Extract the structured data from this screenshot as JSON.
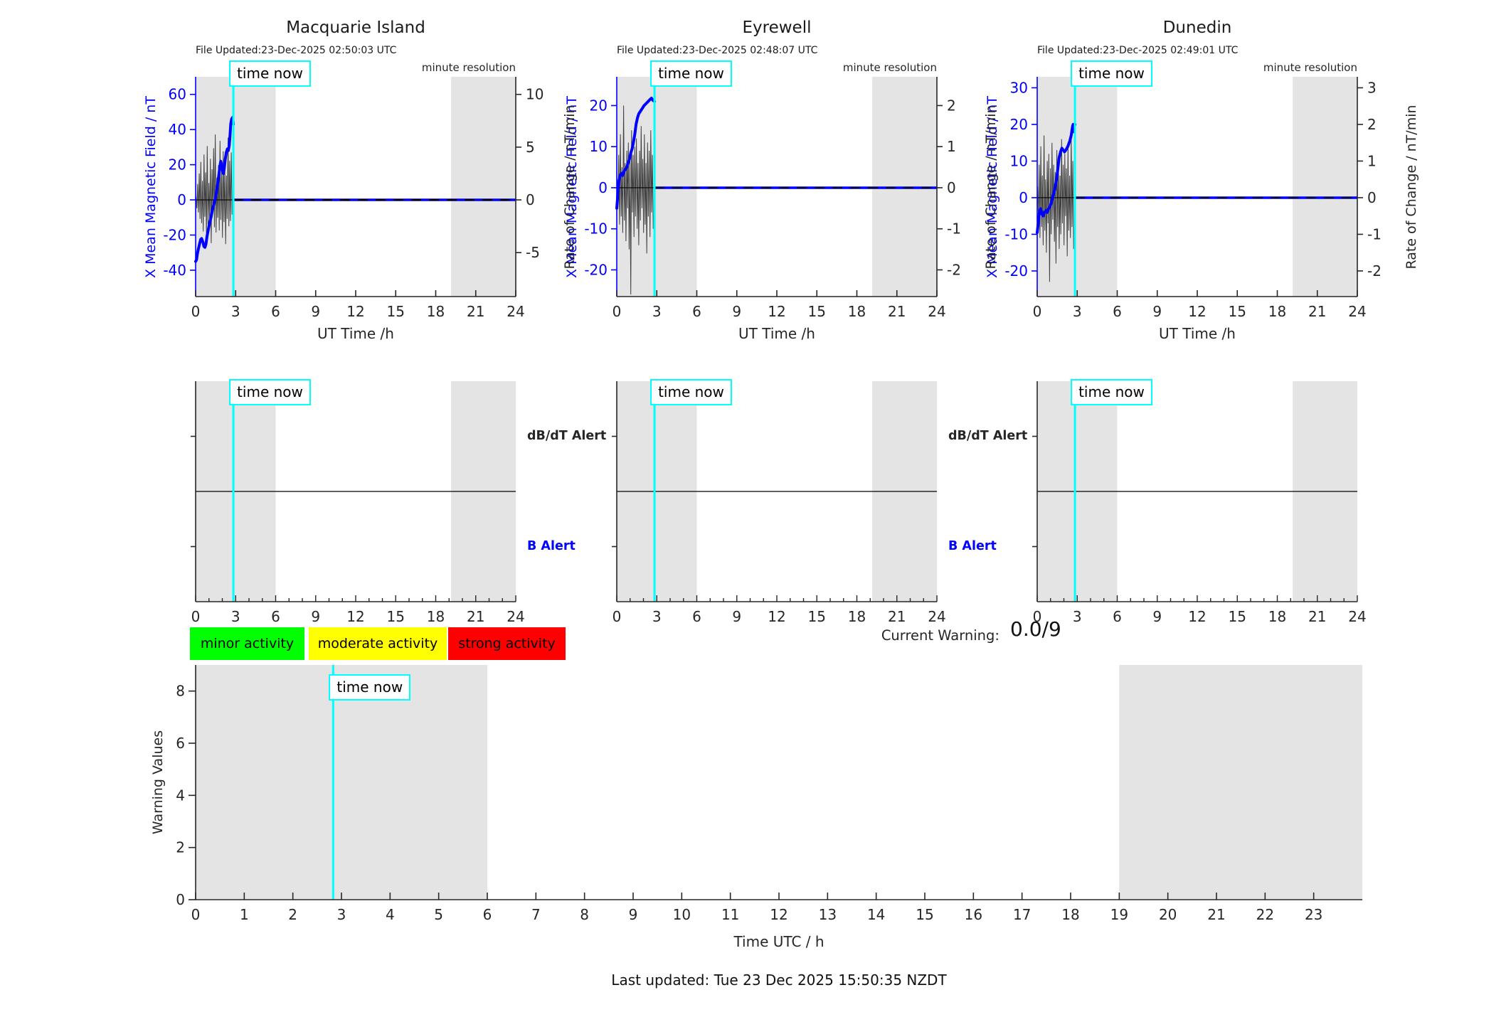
{
  "colors": {
    "accent_blue": "#0000ff",
    "cyan": "#00ffff",
    "band_gray": "#e4e4e4",
    "noise_gray": "#3f3f3f",
    "axis_dark": "#262626",
    "legend_green": "#00ff00",
    "legend_yellow": "#ffff00",
    "legend_red": "#ff0000"
  },
  "chart_data": {
    "type": "line",
    "time_now_h": 2.83,
    "time_now_label": "time now",
    "stations": [
      {
        "id": "macquarie",
        "title": "Macquarie Island",
        "file_updated": "File Updated:23-Dec-2025 02:50:03 UTC",
        "resolution_note": "minute resolution",
        "xlabel": "UT Time /h",
        "ylabel_left": "X Mean Magnetic Field / nT",
        "ylabel_right": "Rate of Change / nT/min",
        "xlim": [
          0,
          24
        ],
        "xticks": [
          0,
          3,
          6,
          9,
          12,
          15,
          18,
          21,
          24
        ],
        "ylim_left": [
          -55,
          70
        ],
        "yticks_left": [
          60,
          40,
          20,
          0,
          -20,
          -40
        ],
        "right_to_left_scale": 6,
        "yticks_right": [
          10,
          5,
          0,
          -5
        ],
        "night_bands": [
          [
            0,
            6
          ],
          [
            19.15,
            24
          ]
        ],
        "future_value": 0,
        "field_series": [
          [
            0,
            -35
          ],
          [
            0.07,
            -34
          ],
          [
            0.12,
            -31
          ],
          [
            0.2,
            -28
          ],
          [
            0.3,
            -25
          ],
          [
            0.38,
            -22.5
          ],
          [
            0.45,
            -22
          ],
          [
            0.55,
            -24
          ],
          [
            0.62,
            -26.5
          ],
          [
            0.7,
            -27
          ],
          [
            0.78,
            -25
          ],
          [
            0.85,
            -21
          ],
          [
            0.95,
            -17
          ],
          [
            1.05,
            -13
          ],
          [
            1.15,
            -10
          ],
          [
            1.25,
            -6
          ],
          [
            1.35,
            -3
          ],
          [
            1.45,
            0
          ],
          [
            1.55,
            4
          ],
          [
            1.65,
            9
          ],
          [
            1.75,
            15
          ],
          [
            1.82,
            19
          ],
          [
            1.88,
            22
          ],
          [
            1.95,
            20
          ],
          [
            2.02,
            16
          ],
          [
            2.08,
            15
          ],
          [
            2.15,
            18
          ],
          [
            2.22,
            23
          ],
          [
            2.3,
            27
          ],
          [
            2.38,
            29
          ],
          [
            2.45,
            28
          ],
          [
            2.52,
            31
          ],
          [
            2.58,
            37
          ],
          [
            2.63,
            43
          ],
          [
            2.7,
            46
          ],
          [
            2.78,
            47
          ],
          [
            2.83,
            43
          ]
        ],
        "rate_series": {
          "t0": 0.03,
          "dt": 0.06,
          "values": [
            0.3,
            -0.8,
            1.5,
            -1.2,
            2.5,
            -1.8,
            3.6,
            -2.2,
            1.8,
            -3.0,
            4.3,
            -1.6,
            2.6,
            -3.4,
            5.1,
            -2.3,
            1.6,
            -2.0,
            3.9,
            -4.1,
            2.9,
            -1.3,
            4.9,
            -2.6,
            6.2,
            -3.1,
            2.1,
            -1.7,
            3.3,
            -2.9,
            5.6,
            -1.9,
            2.7,
            -3.6,
            4.6,
            -2.1,
            3.1,
            -4.2,
            2.3,
            -1.8,
            5.9,
            -2.5,
            3.7,
            -2.0,
            4.5,
            -1.4
          ]
        }
      },
      {
        "id": "eyrewell",
        "title": "Eyrewell",
        "file_updated": "File Updated:23-Dec-2025 02:48:07 UTC",
        "resolution_note": "minute resolution",
        "xlabel": "UT Time /h",
        "ylabel_left": "X Mean Magnetic Field / nT",
        "ylabel_right": "Rate of Change / nT/min",
        "xlim": [
          0,
          24
        ],
        "xticks": [
          0,
          3,
          6,
          9,
          12,
          15,
          18,
          21,
          24
        ],
        "ylim_left": [
          -26.5,
          27
        ],
        "yticks_left": [
          20,
          10,
          0,
          -10,
          -20
        ],
        "right_to_left_scale": 10,
        "yticks_right": [
          2,
          1,
          0,
          -1,
          -2
        ],
        "night_bands": [
          [
            0,
            6
          ],
          [
            19.15,
            24
          ]
        ],
        "future_value": 0,
        "field_series": [
          [
            0,
            -5
          ],
          [
            0.05,
            -3
          ],
          [
            0.1,
            0
          ],
          [
            0.18,
            2
          ],
          [
            0.25,
            3
          ],
          [
            0.35,
            3.5
          ],
          [
            0.45,
            3
          ],
          [
            0.55,
            4
          ],
          [
            0.65,
            4.5
          ],
          [
            0.75,
            5
          ],
          [
            0.85,
            6
          ],
          [
            0.95,
            7
          ],
          [
            1.05,
            8.5
          ],
          [
            1.15,
            9.5
          ],
          [
            1.25,
            11
          ],
          [
            1.35,
            13
          ],
          [
            1.45,
            15.5
          ],
          [
            1.55,
            17
          ],
          [
            1.65,
            18
          ],
          [
            1.75,
            18.5
          ],
          [
            1.85,
            19
          ],
          [
            1.95,
            19.5
          ],
          [
            2.05,
            20
          ],
          [
            2.2,
            20.5
          ],
          [
            2.35,
            21
          ],
          [
            2.5,
            21.5
          ],
          [
            2.6,
            21.8
          ],
          [
            2.7,
            21.3
          ],
          [
            2.83,
            21
          ]
        ],
        "rate_series": {
          "t0": 0.03,
          "dt": 0.06,
          "values": [
            0.2,
            -0.4,
            0.8,
            -0.9,
            1.3,
            -0.7,
            0.5,
            -1.1,
            2.0,
            -0.8,
            0.6,
            -1.3,
            0.9,
            -0.5,
            1.1,
            -1.5,
            0.7,
            -2.6,
            1.4,
            -0.6,
            0.8,
            -1.2,
            1.0,
            -0.7,
            1.2,
            -1.0,
            0.6,
            -1.4,
            0.9,
            -0.8,
            1.5,
            -0.5,
            0.7,
            -1.1,
            1.3,
            -0.9,
            0.6,
            -1.6,
            1.1,
            -0.7,
            0.9,
            -1.2,
            1.4,
            -0.6,
            0.8,
            -1.0
          ]
        }
      },
      {
        "id": "dunedin",
        "title": "Dunedin",
        "file_updated": "File Updated:23-Dec-2025 02:49:01 UTC",
        "resolution_note": "minute resolution",
        "xlabel": "UT Time /h",
        "ylabel_left": "X Mean Magnetic Field / nT",
        "ylabel_right": "Rate of Change / nT/min",
        "xlim": [
          0,
          24
        ],
        "xticks": [
          0,
          3,
          6,
          9,
          12,
          15,
          18,
          21,
          24
        ],
        "ylim_left": [
          -27,
          33
        ],
        "yticks_left": [
          30,
          20,
          10,
          0,
          -10,
          -20
        ],
        "right_to_left_scale": 10,
        "yticks_right": [
          3,
          2,
          1,
          0,
          -1,
          -2
        ],
        "night_bands": [
          [
            0,
            6
          ],
          [
            19.15,
            24
          ]
        ],
        "future_value": 0,
        "field_series": [
          [
            0,
            -9.5
          ],
          [
            0.08,
            -7
          ],
          [
            0.15,
            -4.5
          ],
          [
            0.25,
            -3
          ],
          [
            0.35,
            -4.5
          ],
          [
            0.45,
            -5
          ],
          [
            0.55,
            -4
          ],
          [
            0.65,
            -3.5
          ],
          [
            0.75,
            -4
          ],
          [
            0.85,
            -3
          ],
          [
            0.95,
            -2.5
          ],
          [
            1.05,
            -1.5
          ],
          [
            1.15,
            0
          ],
          [
            1.3,
            2
          ],
          [
            1.45,
            5
          ],
          [
            1.55,
            8
          ],
          [
            1.65,
            11
          ],
          [
            1.75,
            12.5
          ],
          [
            1.85,
            13.5
          ],
          [
            1.95,
            13
          ],
          [
            2.05,
            12.5
          ],
          [
            2.15,
            13
          ],
          [
            2.3,
            14
          ],
          [
            2.45,
            15.5
          ],
          [
            2.55,
            17
          ],
          [
            2.65,
            19.5
          ],
          [
            2.7,
            20
          ],
          [
            2.75,
            18
          ],
          [
            2.8,
            19.5
          ],
          [
            2.83,
            20
          ]
        ],
        "rate_series": {
          "t0": 0.03,
          "dt": 0.06,
          "values": [
            0.3,
            -0.6,
            0.9,
            -1.1,
            1.4,
            -0.8,
            0.6,
            -1.3,
            1.7,
            -0.9,
            0.5,
            -1.5,
            1.0,
            -0.7,
            1.2,
            -2.3,
            0.8,
            -1.0,
            1.5,
            -0.6,
            0.9,
            -1.2,
            0.7,
            -1.8,
            1.3,
            -0.8,
            1.1,
            -1.4,
            0.6,
            -1.0,
            1.6,
            -0.7,
            0.9,
            -1.3,
            1.2,
            -0.5,
            0.8,
            -1.6,
            1.4,
            -0.9,
            0.6,
            -1.1,
            1.7,
            -0.8,
            1.0,
            -1.4
          ]
        }
      }
    ],
    "alert_panels": [
      {
        "station": "macquarie",
        "xticks": [
          0,
          3,
          6,
          9,
          12,
          15,
          18,
          21,
          24
        ],
        "night_bands": [
          [
            0,
            6
          ],
          [
            19.15,
            24
          ]
        ],
        "labels": {
          "top": "dB/dT Alert",
          "bottom": "B Alert"
        },
        "show_labels": true,
        "events": []
      },
      {
        "station": "eyrewell",
        "xticks": [
          0,
          3,
          6,
          9,
          12,
          15,
          18,
          21,
          24
        ],
        "night_bands": [
          [
            0,
            6
          ],
          [
            19.15,
            24
          ]
        ],
        "labels": {
          "top": "dB/dT Alert",
          "bottom": "B Alert"
        },
        "show_labels": true,
        "events": []
      },
      {
        "station": "dunedin",
        "xticks": [
          0,
          3,
          6,
          9,
          12,
          15,
          18,
          21,
          24
        ],
        "night_bands": [
          [
            0,
            6
          ],
          [
            19.15,
            24
          ]
        ],
        "labels": {
          "top": "dB/dT Alert",
          "bottom": "B Alert"
        },
        "show_labels": false,
        "events": []
      }
    ],
    "legend": [
      {
        "label": "minor activity",
        "color": "#00ff00"
      },
      {
        "label": "moderate activity",
        "color": "#ffff00"
      },
      {
        "label": "strong activity",
        "color": "#ff0000"
      }
    ],
    "current_warning": {
      "label": "Current Warning:",
      "value": "0.0/9"
    },
    "warning_chart": {
      "type": "line",
      "ylabel": "Warning Values",
      "xlabel": "Time UTC / h",
      "xlim": [
        0,
        24
      ],
      "xticks": [
        0,
        1,
        2,
        3,
        4,
        5,
        6,
        7,
        8,
        9,
        10,
        11,
        12,
        13,
        14,
        15,
        16,
        17,
        18,
        19,
        20,
        21,
        22,
        23
      ],
      "ylim": [
        0,
        9
      ],
      "yticks": [
        0,
        2,
        4,
        6,
        8
      ],
      "night_bands": [
        [
          0,
          6
        ],
        [
          19,
          24
        ]
      ],
      "values": []
    },
    "footer": "Last updated: Tue 23 Dec 2025 15:50:35 NZDT"
  }
}
